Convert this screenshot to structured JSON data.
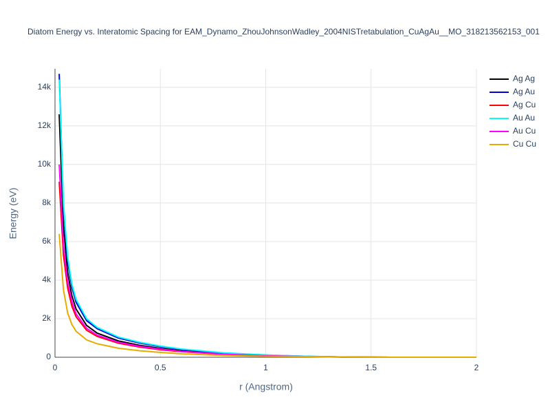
{
  "chart_data": {
    "type": "line",
    "title": "Diatom Energy vs. Interatomic Spacing for EAM_Dynamo_ZhouJohnsonWadley_2004NISTretabulation_CuAgAu__MO_318213562153_001",
    "x_label": "r (Angstrom)",
    "y_label": "Energy (eV)",
    "x": [
      0.02,
      0.04,
      0.06,
      0.08,
      0.1,
      0.15,
      0.2,
      0.3,
      0.4,
      0.5,
      0.6,
      0.8,
      1.0,
      1.2,
      1.4,
      1.6,
      1.8,
      2.0
    ],
    "series": [
      {
        "name": "Ag Ag",
        "color": "#000000",
        "values": [
          12600,
          6800,
          4400,
          3200,
          2500,
          1650,
          1250,
          850,
          620,
          460,
          340,
          180,
          95,
          40,
          8,
          0,
          0,
          0
        ]
      },
      {
        "name": "Ag Au",
        "color": "#0000cc",
        "values": [
          14700,
          7800,
          5000,
          3650,
          2850,
          1900,
          1480,
          1000,
          740,
          550,
          410,
          220,
          110,
          45,
          8,
          0,
          0,
          0
        ]
      },
      {
        "name": "Ag Cu",
        "color": "#ff0000",
        "values": [
          9100,
          5300,
          3600,
          2650,
          2100,
          1400,
          1080,
          730,
          530,
          390,
          290,
          150,
          75,
          30,
          5,
          0,
          0,
          0
        ]
      },
      {
        "name": "Au Au",
        "color": "#00ffff",
        "values": [
          14400,
          8000,
          5200,
          3800,
          3000,
          2000,
          1550,
          1050,
          780,
          580,
          430,
          230,
          120,
          50,
          10,
          0,
          0,
          0
        ]
      },
      {
        "name": "Au Cu",
        "color": "#ff00ff",
        "values": [
          10000,
          5800,
          3900,
          2900,
          2250,
          1500,
          1150,
          780,
          570,
          420,
          310,
          160,
          80,
          35,
          5,
          0,
          0,
          0
        ]
      },
      {
        "name": "Cu Cu",
        "color": "#e6ac00",
        "values": [
          6400,
          3500,
          2300,
          1700,
          1350,
          900,
          700,
          470,
          340,
          250,
          180,
          95,
          50,
          35,
          8,
          0,
          0,
          0
        ]
      }
    ],
    "xlim": [
      0,
      2
    ],
    "xticks": [
      0,
      0.5,
      1,
      1.5,
      2
    ],
    "ylim": [
      0,
      14960
    ],
    "yticks": [
      0,
      {
        "value": 2000,
        "label": "2k"
      },
      {
        "value": 4000,
        "label": "4k"
      },
      {
        "value": 6000,
        "label": "6k"
      },
      {
        "value": 8000,
        "label": "8k"
      },
      {
        "value": 10000,
        "label": "10k"
      },
      {
        "value": 12000,
        "label": "12k"
      },
      {
        "value": 14000,
        "label": "14k"
      }
    ],
    "grid": true,
    "legend": "right"
  }
}
